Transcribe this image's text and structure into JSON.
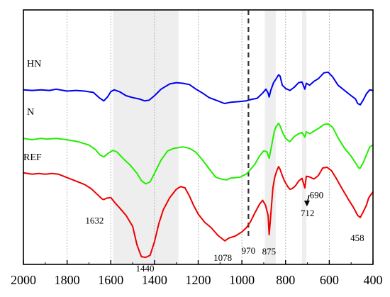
{
  "chart_data": {
    "type": "line",
    "title": "",
    "xlabel": "",
    "ylabel": "",
    "x_axis": {
      "range": [
        2000,
        400
      ],
      "reversed": true,
      "ticks": [
        2000,
        1800,
        1600,
        1400,
        1200,
        1000,
        800,
        600,
        400
      ],
      "tick_labels": [
        "2000",
        "1800",
        "1600",
        "1400",
        "1200",
        "1000",
        "800",
        "600",
        "400"
      ]
    },
    "y_axis": {
      "tick_labels": "none"
    },
    "gridlines": {
      "orientation": "vertical",
      "style": "dotted",
      "positions": [
        1800,
        1600,
        1400,
        1200,
        1000,
        800,
        600
      ]
    },
    "shaded_bands": [
      {
        "from": 1590,
        "to": 1290
      },
      {
        "from": 895,
        "to": 845
      },
      {
        "from": 725,
        "to": 705
      }
    ],
    "reference_lines": [
      {
        "x": 970,
        "style": "dashed",
        "label": "970"
      }
    ],
    "series": [
      {
        "name": "HN",
        "color": "#0000ee",
        "points": [
          [
            2000,
            -29
          ],
          [
            1960,
            -30
          ],
          [
            1920,
            -29
          ],
          [
            1880,
            -30
          ],
          [
            1850,
            -28
          ],
          [
            1800,
            -31
          ],
          [
            1760,
            -30
          ],
          [
            1720,
            -31
          ],
          [
            1680,
            -33
          ],
          [
            1650,
            -42
          ],
          [
            1632,
            -46
          ],
          [
            1615,
            -40
          ],
          [
            1600,
            -32
          ],
          [
            1585,
            -29
          ],
          [
            1560,
            -32
          ],
          [
            1530,
            -38
          ],
          [
            1500,
            -41
          ],
          [
            1470,
            -43
          ],
          [
            1445,
            -46
          ],
          [
            1425,
            -45
          ],
          [
            1400,
            -38
          ],
          [
            1370,
            -28
          ],
          [
            1330,
            -20
          ],
          [
            1300,
            -18
          ],
          [
            1270,
            -19
          ],
          [
            1240,
            -21
          ],
          [
            1210,
            -28
          ],
          [
            1180,
            -34
          ],
          [
            1150,
            -41
          ],
          [
            1110,
            -46
          ],
          [
            1080,
            -50
          ],
          [
            1050,
            -48
          ],
          [
            1010,
            -47
          ],
          [
            980,
            -46
          ],
          [
            960,
            -44
          ],
          [
            930,
            -42
          ],
          [
            905,
            -34
          ],
          [
            890,
            -28
          ],
          [
            880,
            -34
          ],
          [
            875,
            -40
          ],
          [
            868,
            -30
          ],
          [
            855,
            -18
          ],
          [
            845,
            -13
          ],
          [
            832,
            -6
          ],
          [
            825,
            -8
          ],
          [
            815,
            -22
          ],
          [
            800,
            -27
          ],
          [
            780,
            -30
          ],
          [
            760,
            -25
          ],
          [
            740,
            -18
          ],
          [
            725,
            -17
          ],
          [
            712,
            -28
          ],
          [
            705,
            -19
          ],
          [
            690,
            -22
          ],
          [
            670,
            -16
          ],
          [
            650,
            -12
          ],
          [
            625,
            -3
          ],
          [
            605,
            -2
          ],
          [
            585,
            -9
          ],
          [
            560,
            -22
          ],
          [
            530,
            -30
          ],
          [
            500,
            -38
          ],
          [
            480,
            -43
          ],
          [
            470,
            -50
          ],
          [
            458,
            -52
          ],
          [
            445,
            -45
          ],
          [
            430,
            -35
          ],
          [
            415,
            -29
          ],
          [
            400,
            -30
          ]
        ]
      },
      {
        "name": "N",
        "color": "#22ee00",
        "points": [
          [
            2000,
            -25
          ],
          [
            1960,
            -27
          ],
          [
            1920,
            -25
          ],
          [
            1890,
            -26
          ],
          [
            1850,
            -25
          ],
          [
            1800,
            -27
          ],
          [
            1750,
            -30
          ],
          [
            1700,
            -35
          ],
          [
            1670,
            -42
          ],
          [
            1650,
            -50
          ],
          [
            1632,
            -53
          ],
          [
            1610,
            -47
          ],
          [
            1590,
            -43
          ],
          [
            1570,
            -46
          ],
          [
            1545,
            -55
          ],
          [
            1510,
            -66
          ],
          [
            1480,
            -78
          ],
          [
            1460,
            -89
          ],
          [
            1440,
            -94
          ],
          [
            1420,
            -91
          ],
          [
            1400,
            -78
          ],
          [
            1370,
            -58
          ],
          [
            1340,
            -44
          ],
          [
            1310,
            -40
          ],
          [
            1270,
            -38
          ],
          [
            1240,
            -40
          ],
          [
            1210,
            -46
          ],
          [
            1180,
            -58
          ],
          [
            1150,
            -71
          ],
          [
            1120,
            -84
          ],
          [
            1090,
            -87
          ],
          [
            1070,
            -88
          ],
          [
            1050,
            -85
          ],
          [
            1010,
            -84
          ],
          [
            980,
            -79
          ],
          [
            960,
            -72
          ],
          [
            940,
            -64
          ],
          [
            920,
            -52
          ],
          [
            900,
            -44
          ],
          [
            886,
            -45
          ],
          [
            875,
            -55
          ],
          [
            865,
            -38
          ],
          [
            852,
            -15
          ],
          [
            845,
            -8
          ],
          [
            832,
            -2
          ],
          [
            825,
            -6
          ],
          [
            815,
            -15
          ],
          [
            800,
            -25
          ],
          [
            780,
            -30
          ],
          [
            760,
            -22
          ],
          [
            740,
            -18
          ],
          [
            725,
            -16
          ],
          [
            712,
            -23
          ],
          [
            705,
            -15
          ],
          [
            690,
            -18
          ],
          [
            670,
            -14
          ],
          [
            650,
            -10
          ],
          [
            625,
            -4
          ],
          [
            605,
            -3
          ],
          [
            585,
            -8
          ],
          [
            560,
            -24
          ],
          [
            530,
            -40
          ],
          [
            500,
            -52
          ],
          [
            480,
            -62
          ],
          [
            465,
            -70
          ],
          [
            458,
            -70
          ],
          [
            445,
            -62
          ],
          [
            430,
            -50
          ],
          [
            415,
            -38
          ],
          [
            400,
            -35
          ]
        ]
      },
      {
        "name": "REF",
        "color": "#ee0000",
        "points": [
          [
            2000,
            -8
          ],
          [
            1960,
            -10
          ],
          [
            1930,
            -9
          ],
          [
            1900,
            -10
          ],
          [
            1870,
            -9
          ],
          [
            1840,
            -10
          ],
          [
            1800,
            -15
          ],
          [
            1760,
            -20
          ],
          [
            1720,
            -25
          ],
          [
            1690,
            -31
          ],
          [
            1660,
            -40
          ],
          [
            1640,
            -46
          ],
          [
            1632,
            -47
          ],
          [
            1620,
            -45
          ],
          [
            1600,
            -44
          ],
          [
            1580,
            -52
          ],
          [
            1560,
            -59
          ],
          [
            1530,
            -70
          ],
          [
            1500,
            -86
          ],
          [
            1480,
            -113
          ],
          [
            1460,
            -130
          ],
          [
            1440,
            -131
          ],
          [
            1420,
            -128
          ],
          [
            1400,
            -108
          ],
          [
            1380,
            -82
          ],
          [
            1360,
            -62
          ],
          [
            1330,
            -44
          ],
          [
            1300,
            -32
          ],
          [
            1280,
            -28
          ],
          [
            1260,
            -30
          ],
          [
            1240,
            -42
          ],
          [
            1220,
            -56
          ],
          [
            1200,
            -68
          ],
          [
            1170,
            -80
          ],
          [
            1140,
            -88
          ],
          [
            1110,
            -99
          ],
          [
            1090,
            -104
          ],
          [
            1078,
            -107
          ],
          [
            1060,
            -103
          ],
          [
            1030,
            -100
          ],
          [
            1000,
            -94
          ],
          [
            980,
            -88
          ],
          [
            960,
            -79
          ],
          [
            940,
            -66
          ],
          [
            920,
            -54
          ],
          [
            905,
            -48
          ],
          [
            892,
            -55
          ],
          [
            880,
            -70
          ],
          [
            875,
            -98
          ],
          [
            868,
            -70
          ],
          [
            858,
            -30
          ],
          [
            850,
            -15
          ],
          [
            840,
            -5
          ],
          [
            832,
            1
          ],
          [
            825,
            -3
          ],
          [
            815,
            -12
          ],
          [
            805,
            -20
          ],
          [
            790,
            -28
          ],
          [
            780,
            -32
          ],
          [
            770,
            -31
          ],
          [
            755,
            -27
          ],
          [
            740,
            -20
          ],
          [
            725,
            -16
          ],
          [
            712,
            -30
          ],
          [
            705,
            -13
          ],
          [
            690,
            -14
          ],
          [
            670,
            -17
          ],
          [
            650,
            -12
          ],
          [
            630,
            -1
          ],
          [
            610,
            0
          ],
          [
            590,
            -5
          ],
          [
            570,
            -15
          ],
          [
            540,
            -32
          ],
          [
            510,
            -48
          ],
          [
            490,
            -58
          ],
          [
            470,
            -70
          ],
          [
            458,
            -73
          ],
          [
            445,
            -65
          ],
          [
            430,
            -55
          ],
          [
            420,
            -45
          ],
          [
            410,
            -40
          ],
          [
            400,
            -36
          ]
        ]
      }
    ],
    "annotations": [
      {
        "text": "1632",
        "x": 1632
      },
      {
        "text": "1440",
        "x": 1440
      },
      {
        "text": "1078",
        "x": 1078
      },
      {
        "text": "875",
        "x": 875
      },
      {
        "text": "712",
        "x": 712
      },
      {
        "text": "690",
        "x": 690
      },
      {
        "text": "458",
        "x": 458
      }
    ]
  }
}
